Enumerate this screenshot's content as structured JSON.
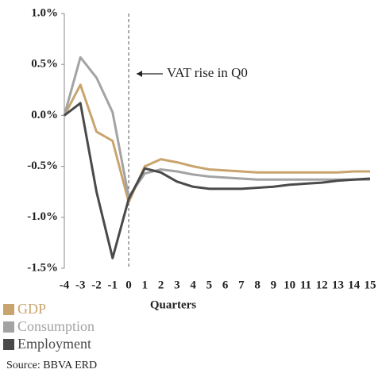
{
  "chart_data": {
    "type": "line",
    "x": [
      -4,
      -3,
      -2,
      -1,
      0,
      1,
      2,
      3,
      4,
      5,
      6,
      7,
      8,
      9,
      10,
      11,
      12,
      13,
      14,
      15
    ],
    "xlim": [
      -4,
      15
    ],
    "xticks": [
      -4,
      -3,
      -2,
      -1,
      0,
      1,
      2,
      3,
      4,
      5,
      6,
      7,
      8,
      9,
      10,
      11,
      12,
      13,
      14,
      15
    ],
    "x_label": "Quarters",
    "ylim": [
      -1.5,
      1.0
    ],
    "yticks": [
      {
        "value": 1.0,
        "label": "1.0%"
      },
      {
        "value": 0.5,
        "label": "0.5%"
      },
      {
        "value": 0,
        "label": "0.0%"
      },
      {
        "value": -0.5,
        "label": "-0.5%"
      },
      {
        "value": -1.0,
        "label": "-1.0%"
      },
      {
        "value": -1.5,
        "label": "-1.5%"
      }
    ],
    "grid": false,
    "vline": 0,
    "annotation": "VAT rise in Q0",
    "source": "Source: BBVA ERD",
    "series": [
      {
        "name": "GDP",
        "color": "#c9a46e",
        "values": [
          0,
          0.3,
          -0.16,
          -0.25,
          -0.85,
          -0.5,
          -0.43,
          -0.46,
          -0.5,
          -0.53,
          -0.54,
          -0.55,
          -0.56,
          -0.56,
          -0.56,
          -0.56,
          -0.56,
          -0.56,
          -0.55,
          -0.55
        ]
      },
      {
        "name": "Consumption",
        "color": "#a3a3a3",
        "values": [
          0,
          0.57,
          0.37,
          0.03,
          -0.8,
          -0.57,
          -0.53,
          -0.55,
          -0.58,
          -0.6,
          -0.61,
          -0.62,
          -0.63,
          -0.63,
          -0.63,
          -0.63,
          -0.63,
          -0.63,
          -0.63,
          -0.63
        ]
      },
      {
        "name": "Employment",
        "color": "#4a4a4a",
        "values": [
          0,
          0.12,
          -0.75,
          -1.4,
          -0.82,
          -0.52,
          -0.56,
          -0.65,
          -0.7,
          -0.72,
          -0.72,
          -0.72,
          -0.71,
          -0.7,
          -0.68,
          -0.67,
          -0.66,
          -0.64,
          -0.63,
          -0.62
        ]
      }
    ]
  }
}
